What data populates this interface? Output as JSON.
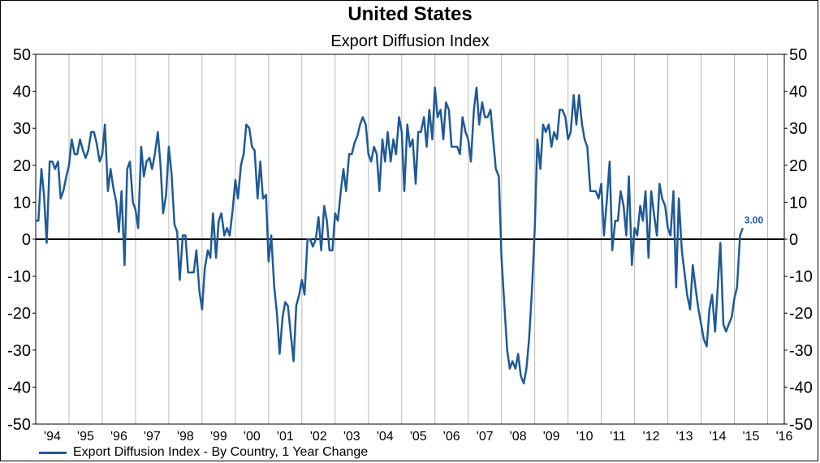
{
  "chart_data": {
    "type": "line",
    "title": "United States",
    "subtitle": "Export Diffusion Index",
    "xlabel": "",
    "ylabel": "",
    "ylim": [
      -50,
      50
    ],
    "yticks": [
      50,
      40,
      30,
      20,
      10,
      0,
      -10,
      -20,
      -30,
      -40,
      -50
    ],
    "xlim": [
      1994.0,
      2016.5
    ],
    "xticks": [
      {
        "x": 1994,
        "label": "'94"
      },
      {
        "x": 1995,
        "label": "'95"
      },
      {
        "x": 1996,
        "label": "'96"
      },
      {
        "x": 1997,
        "label": "'97"
      },
      {
        "x": 1998,
        "label": "'98"
      },
      {
        "x": 1999,
        "label": "'99"
      },
      {
        "x": 2000,
        "label": "'00"
      },
      {
        "x": 2001,
        "label": "'01"
      },
      {
        "x": 2002,
        "label": "'02"
      },
      {
        "x": 2003,
        "label": "'03"
      },
      {
        "x": 2004,
        "label": "'04"
      },
      {
        "x": 2005,
        "label": "'05"
      },
      {
        "x": 2006,
        "label": "'06"
      },
      {
        "x": 2007,
        "label": "'07"
      },
      {
        "x": 2008,
        "label": "'08"
      },
      {
        "x": 2009,
        "label": "'09"
      },
      {
        "x": 2010,
        "label": "'10"
      },
      {
        "x": 2011,
        "label": "'11"
      },
      {
        "x": 2012,
        "label": "'12"
      },
      {
        "x": 2013,
        "label": "'13"
      },
      {
        "x": 2014,
        "label": "'14"
      },
      {
        "x": 2015,
        "label": "'15"
      },
      {
        "x": 2016,
        "label": "'16"
      }
    ],
    "grid": "vertical",
    "zero_line": true,
    "legend_position": "bottom-left",
    "series": [
      {
        "name": "Export Diffusion Index - By Country, 1 Year Change",
        "color": "#1f5a96",
        "last_value_label": "3.00",
        "points": [
          [
            1994.0,
            5
          ],
          [
            1994.08,
            5
          ],
          [
            1994.17,
            19
          ],
          [
            1994.25,
            12
          ],
          [
            1994.33,
            -1
          ],
          [
            1994.42,
            21
          ],
          [
            1994.5,
            21
          ],
          [
            1994.58,
            19
          ],
          [
            1994.67,
            21
          ],
          [
            1994.75,
            11
          ],
          [
            1994.83,
            13
          ],
          [
            1994.92,
            17
          ],
          [
            1995.0,
            20
          ],
          [
            1995.08,
            27
          ],
          [
            1995.17,
            23
          ],
          [
            1995.25,
            23
          ],
          [
            1995.33,
            27
          ],
          [
            1995.42,
            24
          ],
          [
            1995.5,
            22
          ],
          [
            1995.58,
            24
          ],
          [
            1995.67,
            29
          ],
          [
            1995.75,
            29
          ],
          [
            1995.83,
            26
          ],
          [
            1995.92,
            21
          ],
          [
            1996.0,
            23
          ],
          [
            1996.08,
            31
          ],
          [
            1996.17,
            13
          ],
          [
            1996.25,
            19
          ],
          [
            1996.33,
            14
          ],
          [
            1996.42,
            10
          ],
          [
            1996.5,
            2
          ],
          [
            1996.58,
            13
          ],
          [
            1996.67,
            -7
          ],
          [
            1996.75,
            19
          ],
          [
            1996.83,
            21
          ],
          [
            1996.92,
            10
          ],
          [
            1997.0,
            8
          ],
          [
            1997.08,
            3
          ],
          [
            1997.17,
            25
          ],
          [
            1997.25,
            17
          ],
          [
            1997.33,
            21
          ],
          [
            1997.42,
            22
          ],
          [
            1997.5,
            19
          ],
          [
            1997.58,
            23
          ],
          [
            1997.67,
            29
          ],
          [
            1997.75,
            20
          ],
          [
            1997.83,
            7
          ],
          [
            1997.92,
            12
          ],
          [
            1998.0,
            25
          ],
          [
            1998.08,
            18
          ],
          [
            1998.17,
            4
          ],
          [
            1998.25,
            2
          ],
          [
            1998.33,
            -11
          ],
          [
            1998.42,
            1
          ],
          [
            1998.5,
            1
          ],
          [
            1998.58,
            -9
          ],
          [
            1998.67,
            -9
          ],
          [
            1998.75,
            -9
          ],
          [
            1998.83,
            -3
          ],
          [
            1998.92,
            -14
          ],
          [
            1999.0,
            -19
          ],
          [
            1999.08,
            -8
          ],
          [
            1999.17,
            -3
          ],
          [
            1999.25,
            -5
          ],
          [
            1999.33,
            7
          ],
          [
            1999.42,
            -5
          ],
          [
            1999.5,
            5
          ],
          [
            1999.58,
            7
          ],
          [
            1999.67,
            1
          ],
          [
            1999.75,
            3
          ],
          [
            1999.83,
            1
          ],
          [
            1999.92,
            8
          ],
          [
            2000.0,
            16
          ],
          [
            2000.08,
            11
          ],
          [
            2000.17,
            20
          ],
          [
            2000.25,
            23
          ],
          [
            2000.33,
            31
          ],
          [
            2000.42,
            30
          ],
          [
            2000.5,
            25
          ],
          [
            2000.58,
            24
          ],
          [
            2000.67,
            11
          ],
          [
            2000.75,
            21
          ],
          [
            2000.83,
            11
          ],
          [
            2000.92,
            12
          ],
          [
            2001.0,
            -6
          ],
          [
            2001.08,
            1
          ],
          [
            2001.17,
            -13
          ],
          [
            2001.25,
            -20
          ],
          [
            2001.33,
            -31
          ],
          [
            2001.42,
            -21
          ],
          [
            2001.5,
            -17
          ],
          [
            2001.58,
            -18
          ],
          [
            2001.67,
            -26
          ],
          [
            2001.75,
            -33
          ],
          [
            2001.83,
            -18
          ],
          [
            2001.92,
            -15
          ],
          [
            2002.0,
            -11
          ],
          [
            2002.08,
            -15
          ],
          [
            2002.17,
            0
          ],
          [
            2002.25,
            0
          ],
          [
            2002.33,
            -2
          ],
          [
            2002.42,
            0
          ],
          [
            2002.5,
            6
          ],
          [
            2002.58,
            -3
          ],
          [
            2002.67,
            9
          ],
          [
            2002.75,
            5
          ],
          [
            2002.83,
            -3
          ],
          [
            2002.92,
            -3
          ],
          [
            2003.0,
            7
          ],
          [
            2003.08,
            5
          ],
          [
            2003.17,
            13
          ],
          [
            2003.25,
            19
          ],
          [
            2003.33,
            13
          ],
          [
            2003.42,
            23
          ],
          [
            2003.5,
            23
          ],
          [
            2003.58,
            26
          ],
          [
            2003.67,
            28
          ],
          [
            2003.75,
            31
          ],
          [
            2003.83,
            33
          ],
          [
            2003.92,
            31
          ],
          [
            2004.0,
            23
          ],
          [
            2004.08,
            21
          ],
          [
            2004.17,
            25
          ],
          [
            2004.25,
            23
          ],
          [
            2004.33,
            13
          ],
          [
            2004.42,
            27
          ],
          [
            2004.5,
            21
          ],
          [
            2004.58,
            29
          ],
          [
            2004.67,
            21
          ],
          [
            2004.75,
            27
          ],
          [
            2004.83,
            23
          ],
          [
            2004.92,
            33
          ],
          [
            2005.0,
            29
          ],
          [
            2005.08,
            13
          ],
          [
            2005.17,
            31
          ],
          [
            2005.25,
            25
          ],
          [
            2005.33,
            27
          ],
          [
            2005.42,
            15
          ],
          [
            2005.5,
            29
          ],
          [
            2005.58,
            29
          ],
          [
            2005.67,
            33
          ],
          [
            2005.75,
            25
          ],
          [
            2005.83,
            35
          ],
          [
            2005.92,
            27
          ],
          [
            2006.0,
            41
          ],
          [
            2006.08,
            33
          ],
          [
            2006.17,
            35
          ],
          [
            2006.25,
            27
          ],
          [
            2006.33,
            37
          ],
          [
            2006.42,
            35
          ],
          [
            2006.5,
            25
          ],
          [
            2006.58,
            25
          ],
          [
            2006.67,
            25
          ],
          [
            2006.75,
            23
          ],
          [
            2006.83,
            33
          ],
          [
            2006.92,
            29
          ],
          [
            2007.0,
            27
          ],
          [
            2007.08,
            21
          ],
          [
            2007.17,
            35
          ],
          [
            2007.25,
            41
          ],
          [
            2007.33,
            31
          ],
          [
            2007.42,
            37
          ],
          [
            2007.5,
            33
          ],
          [
            2007.58,
            33
          ],
          [
            2007.67,
            35
          ],
          [
            2007.75,
            27
          ],
          [
            2007.83,
            19
          ],
          [
            2007.92,
            17
          ],
          [
            2008.0,
            -5
          ],
          [
            2008.08,
            -17
          ],
          [
            2008.17,
            -30
          ],
          [
            2008.25,
            -35
          ],
          [
            2008.33,
            -33
          ],
          [
            2008.42,
            -35
          ],
          [
            2008.5,
            -31
          ],
          [
            2008.58,
            -37
          ],
          [
            2008.67,
            -39
          ],
          [
            2008.75,
            -35
          ],
          [
            2008.83,
            -27
          ],
          [
            2008.92,
            -13
          ],
          [
            2009.0,
            3
          ],
          [
            2009.08,
            27
          ],
          [
            2009.17,
            19
          ],
          [
            2009.25,
            31
          ],
          [
            2009.33,
            29
          ],
          [
            2009.42,
            31
          ],
          [
            2009.5,
            25
          ],
          [
            2009.58,
            29
          ],
          [
            2009.67,
            27
          ],
          [
            2009.75,
            35
          ],
          [
            2009.83,
            35
          ],
          [
            2009.92,
            33
          ],
          [
            2010.0,
            27
          ],
          [
            2010.08,
            29
          ],
          [
            2010.17,
            39
          ],
          [
            2010.25,
            31
          ],
          [
            2010.33,
            39
          ],
          [
            2010.42,
            31
          ],
          [
            2010.5,
            27
          ],
          [
            2010.58,
            25
          ],
          [
            2010.67,
            13
          ],
          [
            2010.75,
            13
          ],
          [
            2010.83,
            13
          ],
          [
            2010.92,
            11
          ],
          [
            2011.0,
            15
          ],
          [
            2011.08,
            1
          ],
          [
            2011.17,
            11
          ],
          [
            2011.25,
            21
          ],
          [
            2011.33,
            -3
          ],
          [
            2011.42,
            5
          ],
          [
            2011.5,
            5
          ],
          [
            2011.58,
            13
          ],
          [
            2011.67,
            9
          ],
          [
            2011.75,
            1
          ],
          [
            2011.83,
            17
          ],
          [
            2011.92,
            -7
          ],
          [
            2012.0,
            3
          ],
          [
            2012.08,
            1
          ],
          [
            2012.17,
            9
          ],
          [
            2012.25,
            5
          ],
          [
            2012.33,
            13
          ],
          [
            2012.42,
            -5
          ],
          [
            2012.5,
            13
          ],
          [
            2012.58,
            7
          ],
          [
            2012.67,
            1
          ],
          [
            2012.75,
            15
          ],
          [
            2012.83,
            11
          ],
          [
            2012.92,
            9
          ],
          [
            2013.0,
            3
          ],
          [
            2013.08,
            1
          ],
          [
            2013.17,
            13
          ],
          [
            2013.25,
            -13
          ],
          [
            2013.33,
            11
          ],
          [
            2013.42,
            -3
          ],
          [
            2013.5,
            -9
          ],
          [
            2013.58,
            -15
          ],
          [
            2013.67,
            -19
          ],
          [
            2013.75,
            -7
          ],
          [
            2013.83,
            -13
          ],
          [
            2013.92,
            -19
          ],
          [
            2014.0,
            -23
          ],
          [
            2014.08,
            -27
          ],
          [
            2014.17,
            -29
          ],
          [
            2014.25,
            -19
          ],
          [
            2014.33,
            -15
          ],
          [
            2014.42,
            -25
          ],
          [
            2014.5,
            -13
          ],
          [
            2014.58,
            -1
          ],
          [
            2014.67,
            -23
          ],
          [
            2014.75,
            -25
          ],
          [
            2014.83,
            -23
          ],
          [
            2014.92,
            -21
          ],
          [
            2015.0,
            -16
          ],
          [
            2015.08,
            -13
          ],
          [
            2015.17,
            1
          ],
          [
            2015.25,
            3
          ]
        ]
      }
    ]
  }
}
